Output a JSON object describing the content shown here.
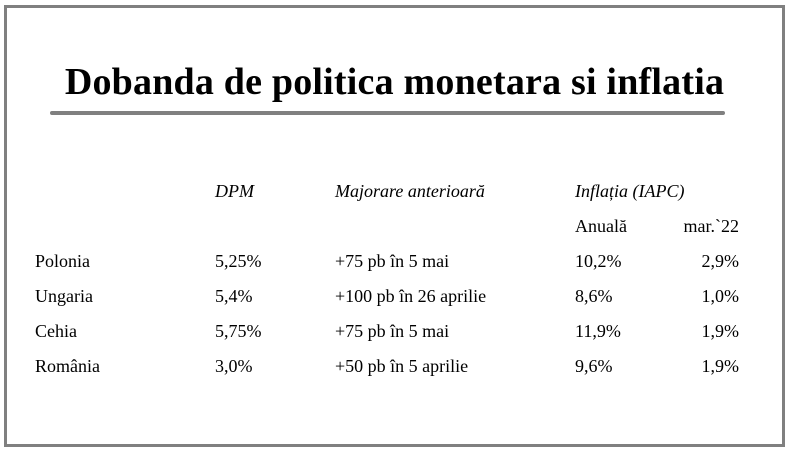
{
  "title": "Dobanda de politica monetara si inflatia",
  "headers": {
    "dpm": "DPM",
    "hike": "Majorare anterioară",
    "inflation": "Inflația (IAPC)",
    "annual": "Anuală",
    "month": "mar.`22"
  },
  "rows": [
    {
      "country": "Polonia",
      "dpm": "5,25%",
      "hike": "+75 pb în 5 mai",
      "annual": "10,2%",
      "month": "2,9%"
    },
    {
      "country": "Ungaria",
      "dpm": "5,4%",
      "hike": "+100 pb în 26 aprilie",
      "annual": "8,6%",
      "month": "1,0%"
    },
    {
      "country": "Cehia",
      "dpm": "5,75%",
      "hike": "+75 pb în 5 mai",
      "annual": "11,9%",
      "month": "1,9%"
    },
    {
      "country": "România",
      "dpm": "3,0%",
      "hike": "+50 pb în 5 aprilie",
      "annual": "9,6%",
      "month": "1,9%"
    }
  ],
  "colors": {
    "frame": "#808080",
    "rule": "#808080",
    "text": "#000000",
    "background": "#ffffff"
  }
}
